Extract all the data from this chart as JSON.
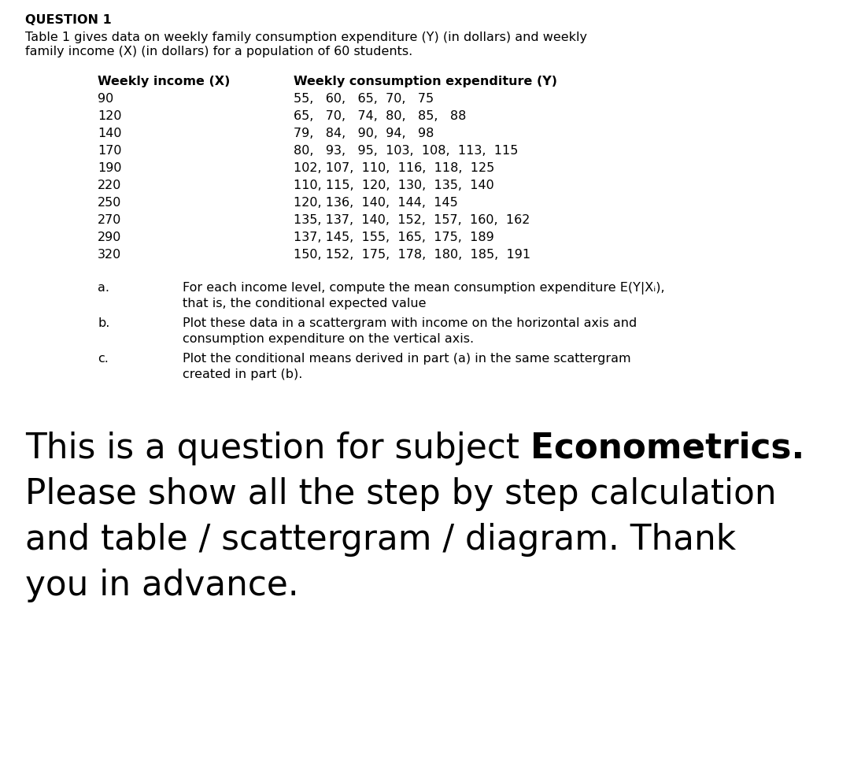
{
  "title": "QUESTION 1",
  "intro_line1": "Table 1 gives data on weekly family consumption expenditure (Y) (in dollars) and weekly",
  "intro_line2": "family income (X) (in dollars) for a population of 60 students.",
  "col1_header": "Weekly income (X)",
  "col2_header": "Weekly consumption expenditure (Y)",
  "table_data": [
    {
      "x": "90",
      "y": "55,   60,   65,  70,   75"
    },
    {
      "x": "120",
      "y": "65,   70,   74,  80,   85,   88"
    },
    {
      "x": "140",
      "y": "79,   84,   90,  94,   98"
    },
    {
      "x": "170",
      "y": "80,   93,   95,  103,  108,  113,  115"
    },
    {
      "x": "190",
      "y": "102, 107,  110,  116,  118,  125"
    },
    {
      "x": "220",
      "y": "110, 115,  120,  130,  135,  140"
    },
    {
      "x": "250",
      "y": "120, 136,  140,  144,  145"
    },
    {
      "x": "270",
      "y": "135, 137,  140,  152,  157,  160,  162"
    },
    {
      "x": "290",
      "y": "137, 145,  155,  165,  175,  189"
    },
    {
      "x": "320",
      "y": "150, 152,  175,  178,  180,  185,  191"
    }
  ],
  "parts": [
    {
      "label": "a.",
      "text_line1": "For each income level, compute the mean consumption expenditure E(Y|Xᵢ),",
      "text_line2": "that is, the conditional expected value"
    },
    {
      "label": "b.",
      "text_line1": "Plot these data in a scattergram with income on the horizontal axis and",
      "text_line2": "consumption expenditure on the vertical axis."
    },
    {
      "label": "c.",
      "text_line1": "Plot the conditional means derived in part (a) in the same scattergram",
      "text_line2": "created in part (b)."
    }
  ],
  "footer_line1_normal": "This is a question for subject ",
  "footer_line1_bold": "Econometrics.",
  "footer_line2": "Please show all the step by step calculation",
  "footer_line3": "and table / scattergram / diagram. Thank",
  "footer_line4": "you in advance.",
  "bg_color": "#ffffff",
  "text_color": "#000000",
  "small_fontsize": 11.5,
  "footer_fontsize": 31.5,
  "fig_width": 10.8,
  "fig_height": 9.88,
  "dpi": 100
}
